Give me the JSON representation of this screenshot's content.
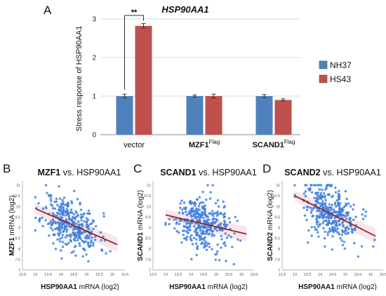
{
  "panels": {
    "A": "A",
    "B": "B",
    "C": "C",
    "D": "D"
  },
  "chart_data": [
    {
      "type": "bar",
      "title": "HSP90AA1",
      "ylabel": "Stress response of HSP90AA1",
      "ylim": [
        0,
        3
      ],
      "yticks": [
        "0",
        "1",
        "2",
        "3"
      ],
      "categories": [
        {
          "base": "vector",
          "sup": ""
        },
        {
          "base": "MZF1",
          "sup": "Flag"
        },
        {
          "base": "SCAND1",
          "sup": "Flag"
        }
      ],
      "series": [
        {
          "name": "NH37",
          "color": "#4f81bd",
          "values": [
            1.0,
            1.0,
            1.0
          ],
          "errors": [
            0.05,
            0.03,
            0.04
          ]
        },
        {
          "name": "HS43",
          "color": "#c0504d",
          "values": [
            2.82,
            1.0,
            0.9
          ],
          "errors": [
            0.06,
            0.05,
            0.03
          ]
        }
      ],
      "significance": {
        "label": "**",
        "category": 0
      },
      "legend_position": "right"
    },
    {
      "type": "scatter",
      "title_bold": "MZF1",
      "title_rest": " vs. HSP90AA1",
      "xlabel_bold": "HSP90AA1",
      "xlabel_rest": " mRNA (log2)",
      "ylabel_bold": "MZF1",
      "ylabel_rest": " mRNA (log2)",
      "xlim": [
        12.5,
        16.5
      ],
      "ylim": [
        7,
        11.2
      ],
      "xticks": [
        "12.5",
        "13",
        "13.5",
        "14",
        "14.5",
        "15",
        "15.5",
        "16",
        "16.5"
      ],
      "yticks": [
        "7",
        "7.5",
        "8",
        "8.5",
        "9",
        "9.5",
        "10",
        "10.5",
        "11"
      ],
      "trend": {
        "x1": 13.0,
        "y1": 9.9,
        "x2": 16.2,
        "y2": 8.2
      },
      "point_color": "#3d7fe0",
      "trend_color": "#8b2a1a"
    },
    {
      "type": "scatter",
      "title_bold": "SCAND1",
      "title_rest": " vs. HSP90AA1",
      "xlabel_bold": "HSP90AA1",
      "xlabel_rest": " mRNA (log2)",
      "ylabel_bold": "SCAND1",
      "ylabel_rest": " mRNA (log2)",
      "xlim": [
        12.5,
        16.5
      ],
      "ylim": [
        7,
        11.2
      ],
      "xticks": [
        "12.5",
        "13",
        "13.5",
        "14",
        "14.5",
        "15",
        "15.5",
        "16",
        "16.5"
      ],
      "yticks": [
        "7",
        "7.5",
        "8",
        "8.5",
        "9",
        "9.5",
        "10",
        "10.5",
        "11"
      ],
      "trend": {
        "x1": 13.0,
        "y1": 9.6,
        "x2": 16.2,
        "y2": 8.7
      },
      "point_color": "#3d7fe0",
      "trend_color": "#8b2a1a"
    },
    {
      "type": "scatter",
      "title_bold": "SCAND2",
      "title_rest": " vs. HSP90AA1",
      "xlabel_bold": "HSP90AA1",
      "xlabel_rest": " mRNA (log2)",
      "ylabel_bold": "SCAND2",
      "ylabel_rest": " mRNA (log2)",
      "xlim": [
        12.5,
        16.5
      ],
      "ylim": [
        7,
        11.2
      ],
      "xticks": [
        "12.5",
        "13",
        "13.5",
        "14",
        "14.5",
        "15",
        "15.5",
        "16",
        "16.5"
      ],
      "yticks": [
        "7",
        "7.5",
        "8",
        "8.5",
        "9",
        "9.5",
        "10",
        "10.5",
        "11"
      ],
      "trend": {
        "x1": 13.0,
        "y1": 10.5,
        "x2": 16.2,
        "y2": 8.6
      },
      "point_color": "#3d7fe0",
      "trend_color": "#8b2a1a"
    }
  ]
}
